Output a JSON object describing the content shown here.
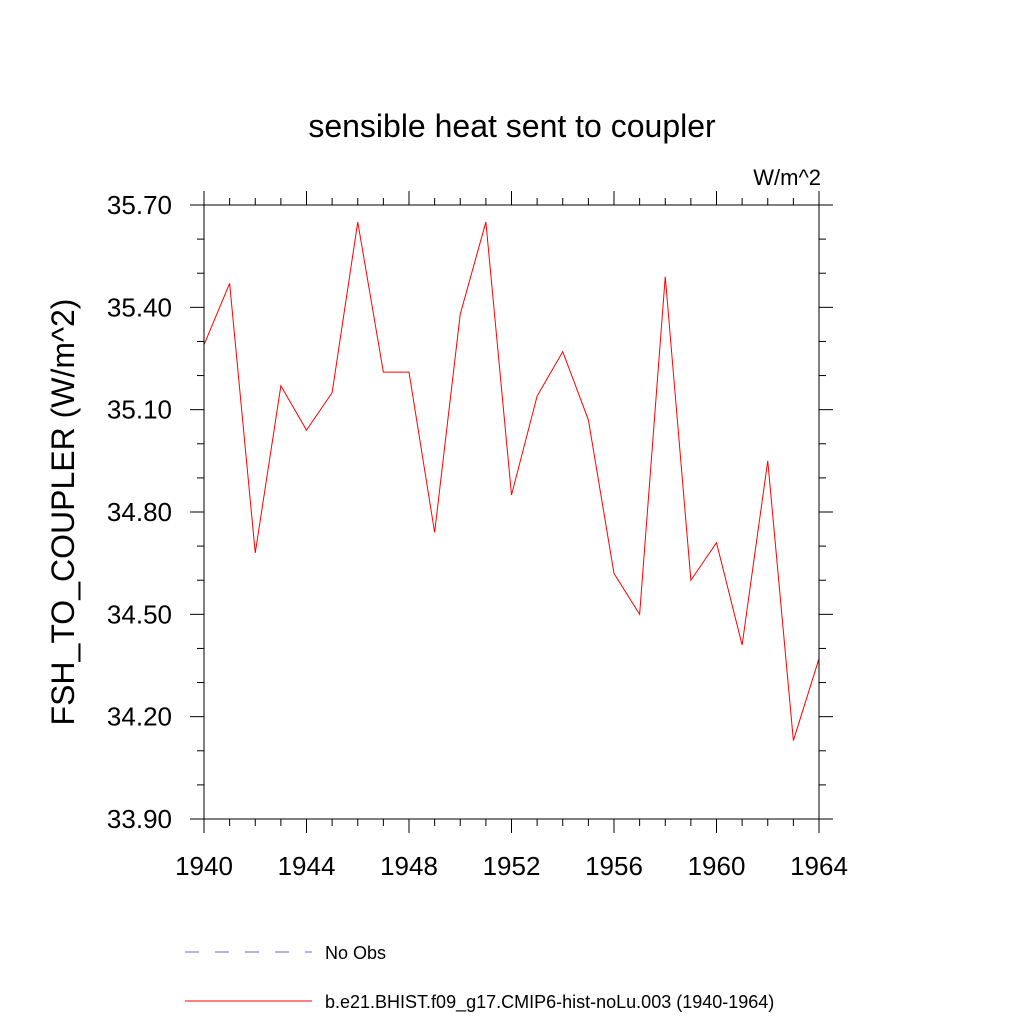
{
  "chart_data": {
    "type": "line",
    "title": "sensible heat sent to coupler",
    "units": "W/m^2",
    "xlabel": "",
    "ylabel": "FSH_TO_COUPLER  (W/m^2)",
    "xlim": [
      1940,
      1964
    ],
    "ylim": [
      33.9,
      35.7
    ],
    "x_ticks": [
      "1940",
      "1944",
      "1948",
      "1952",
      "1956",
      "1960",
      "1964"
    ],
    "y_ticks": [
      "33.90",
      "34.20",
      "34.50",
      "34.80",
      "35.10",
      "35.40",
      "35.70"
    ],
    "grid": false,
    "legend_position": "bottom",
    "x": [
      1940,
      1941,
      1942,
      1943,
      1944,
      1945,
      1946,
      1947,
      1948,
      1949,
      1950,
      1951,
      1952,
      1953,
      1954,
      1955,
      1956,
      1957,
      1958,
      1959,
      1960,
      1961,
      1962,
      1963,
      1964
    ],
    "series": [
      {
        "name": "b.e21.BHIST.f09_g17.CMIP6-hist-noLu.003 (1940-1964)",
        "color": "#ff0000",
        "style": "solid",
        "values": [
          35.29,
          35.47,
          34.68,
          35.17,
          35.04,
          35.15,
          35.65,
          35.21,
          35.21,
          34.74,
          35.38,
          35.65,
          34.85,
          35.14,
          35.27,
          35.07,
          34.62,
          34.5,
          35.49,
          34.6,
          34.71,
          34.41,
          34.95,
          34.13,
          34.37
        ]
      }
    ],
    "legend": [
      {
        "label": "No Obs",
        "color": "#6a6acd",
        "style": "dashed"
      },
      {
        "label": "b.e21.BHIST.f09_g17.CMIP6-hist-noLu.003 (1940-1964)",
        "color": "#ff0000",
        "style": "solid"
      }
    ]
  }
}
